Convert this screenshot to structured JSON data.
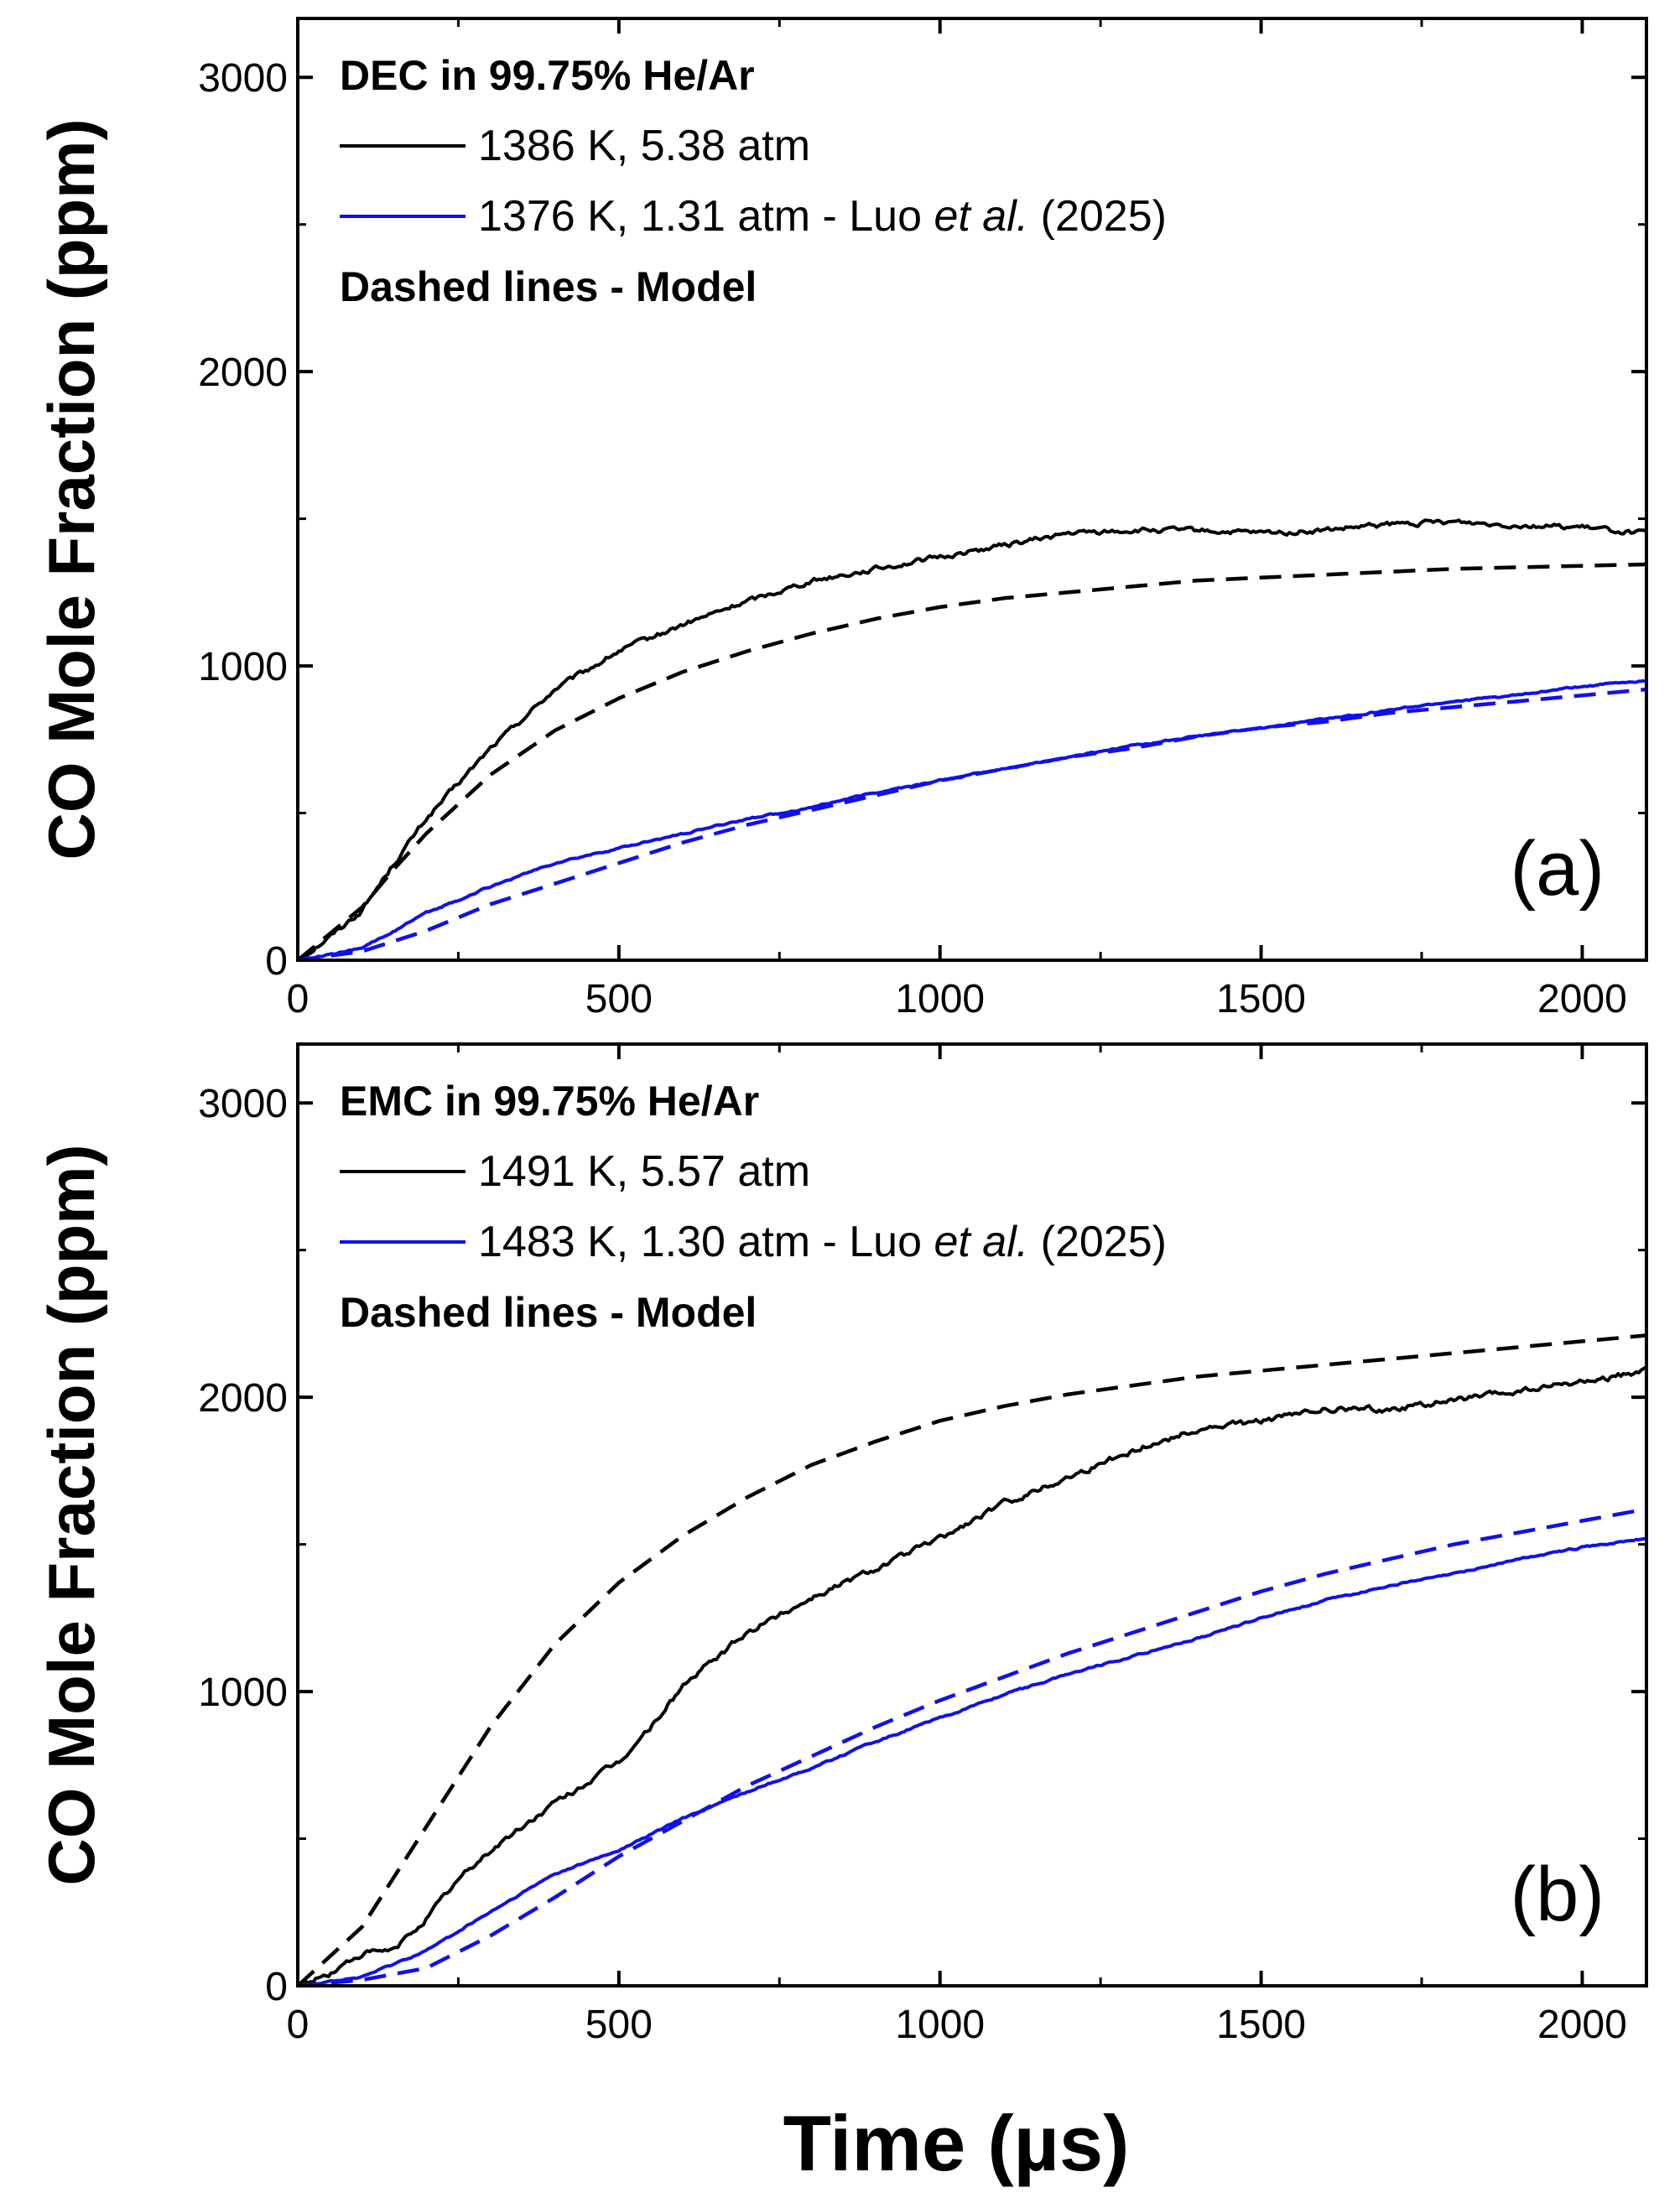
{
  "figure": {
    "shared_ylabel": "CO Mole Fraction (ppm)",
    "shared_xlabel": "Time (µs)"
  },
  "chart_data": [
    {
      "type": "line",
      "panel_label": "(a)",
      "legend_title": "DEC in 99.75% He/Ar",
      "legend_note": "Dashed lines - Model",
      "legend_placement": "top-left",
      "xlabel": "",
      "ylabel": "CO Mole Fraction (ppm)",
      "xlim": [
        0,
        2100
      ],
      "ylim": [
        0,
        3200
      ],
      "xticks": [
        0,
        500,
        1000,
        1500,
        2000
      ],
      "xtick_labels": [
        "0",
        "500",
        "1000",
        "1500",
        "2000"
      ],
      "yticks": [
        0,
        1000,
        2000,
        3000
      ],
      "ytick_labels": [
        "0",
        "1000",
        "2000",
        "3000"
      ],
      "series": [
        {
          "name": "1386 K, 5.38 atm",
          "label_parts": [
            "1386 K, 5.38 atm"
          ],
          "color": "#000000",
          "style": "solid",
          "noise": 14,
          "x": [
            0,
            50,
            100,
            150,
            200,
            250,
            300,
            400,
            500,
            600,
            700,
            800,
            900,
            1000,
            1100,
            1200,
            1300,
            1400,
            1500,
            1600,
            1700,
            1800,
            1900,
            2000,
            2100
          ],
          "y": [
            0,
            80,
            170,
            330,
            480,
            600,
            720,
            920,
            1050,
            1140,
            1220,
            1290,
            1330,
            1370,
            1410,
            1450,
            1460,
            1460,
            1450,
            1460,
            1480,
            1490,
            1480,
            1470,
            1450
          ]
        },
        {
          "name": "1376 K, 1.31 atm - Luo et al. (2025)",
          "label_parts": [
            "1376 K, 1.31 atm - Luo ",
            "et al.",
            " (2025)"
          ],
          "color": "#1010ee",
          "style": "solid",
          "noise": 5,
          "x": [
            0,
            100,
            200,
            300,
            400,
            500,
            600,
            700,
            800,
            900,
            1000,
            1100,
            1200,
            1300,
            1400,
            1500,
            1600,
            1700,
            1800,
            1900,
            2000,
            2100
          ],
          "y": [
            0,
            40,
            160,
            250,
            330,
            380,
            430,
            480,
            520,
            570,
            610,
            650,
            690,
            730,
            760,
            790,
            820,
            850,
            880,
            900,
            930,
            950
          ]
        },
        {
          "name": "1386 K, 5.38 atm - Model",
          "color": "#000000",
          "style": "dashed",
          "x": [
            0,
            100,
            150,
            200,
            300,
            400,
            500,
            600,
            700,
            800,
            900,
            1000,
            1100,
            1200,
            1300,
            1400,
            1500,
            1600,
            1700,
            1800,
            1900,
            2000,
            2100
          ],
          "y": [
            0,
            180,
            310,
            430,
            630,
            780,
            890,
            980,
            1050,
            1110,
            1160,
            1200,
            1230,
            1250,
            1270,
            1290,
            1300,
            1310,
            1320,
            1330,
            1335,
            1340,
            1345
          ]
        },
        {
          "name": "1376 K, 1.31 atm - Model",
          "color": "#1010ee",
          "style": "dashed",
          "x": [
            0,
            100,
            200,
            300,
            400,
            500,
            600,
            700,
            800,
            900,
            1000,
            1100,
            1200,
            1300,
            1400,
            1500,
            1600,
            1700,
            1800,
            1900,
            2000,
            2100
          ],
          "y": [
            0,
            30,
            100,
            190,
            260,
            330,
            400,
            460,
            510,
            560,
            610,
            650,
            690,
            720,
            760,
            790,
            810,
            840,
            860,
            880,
            900,
            920
          ]
        }
      ]
    },
    {
      "type": "line",
      "panel_label": "(b)",
      "legend_title": "EMC in 99.75% He/Ar",
      "legend_note": "Dashed lines - Model",
      "legend_placement": "top-left",
      "xlabel": "Time (µs)",
      "ylabel": "CO Mole Fraction (ppm)",
      "xlim": [
        0,
        2100
      ],
      "ylim": [
        0,
        3200
      ],
      "xticks": [
        0,
        500,
        1000,
        1500,
        2000
      ],
      "xtick_labels": [
        "0",
        "500",
        "1000",
        "1500",
        "2000"
      ],
      "yticks": [
        0,
        1000,
        2000,
        3000
      ],
      "ytick_labels": [
        "0",
        "1000",
        "2000",
        "3000"
      ],
      "series": [
        {
          "name": "1491 K, 5.57 atm",
          "label_parts": [
            "1491 K, 5.57 atm"
          ],
          "color": "#000000",
          "style": "solid",
          "noise": 16,
          "x": [
            0,
            50,
            100,
            150,
            200,
            250,
            300,
            400,
            500,
            550,
            600,
            700,
            800,
            900,
            1000,
            1100,
            1200,
            1300,
            1400,
            1500,
            1600,
            1700,
            1800,
            1900,
            2000,
            2100
          ],
          "y": [
            0,
            40,
            110,
            120,
            230,
            360,
            460,
            620,
            760,
            880,
            1020,
            1200,
            1320,
            1420,
            1520,
            1640,
            1730,
            1820,
            1890,
            1920,
            1960,
            1960,
            1990,
            2020,
            2050,
            2090
          ]
        },
        {
          "name": "1483 K, 1.30 atm - Luo et al. (2025)",
          "label_parts": [
            "1483 K, 1.30 atm - Luo ",
            "et al.",
            " (2025)"
          ],
          "color": "#1010ee",
          "style": "solid",
          "noise": 5,
          "x": [
            0,
            100,
            200,
            300,
            400,
            500,
            600,
            700,
            800,
            900,
            1000,
            1100,
            1200,
            1300,
            1400,
            1500,
            1600,
            1700,
            1800,
            1900,
            2000,
            2100
          ],
          "y": [
            0,
            30,
            120,
            250,
            380,
            460,
            570,
            660,
            740,
            830,
            910,
            990,
            1060,
            1120,
            1180,
            1250,
            1310,
            1360,
            1400,
            1450,
            1490,
            1520
          ]
        },
        {
          "name": "1491 K, 5.57 atm - Model",
          "color": "#000000",
          "style": "dashed",
          "x": [
            0,
            100,
            200,
            300,
            400,
            500,
            600,
            700,
            800,
            900,
            1000,
            1100,
            1200,
            1300,
            1400,
            1500,
            1600,
            1700,
            1800,
            1900,
            2000,
            2100
          ],
          "y": [
            0,
            200,
            540,
            880,
            1160,
            1370,
            1530,
            1660,
            1770,
            1850,
            1920,
            1970,
            2010,
            2040,
            2070,
            2090,
            2110,
            2130,
            2150,
            2170,
            2190,
            2210
          ]
        },
        {
          "name": "1483 K, 1.30 atm - Model",
          "color": "#1010ee",
          "style": "dashed",
          "x": [
            0,
            100,
            200,
            300,
            400,
            500,
            600,
            700,
            800,
            900,
            1000,
            1100,
            1200,
            1300,
            1400,
            1500,
            1600,
            1700,
            1800,
            1900,
            2000,
            2100
          ],
          "y": [
            0,
            20,
            60,
            170,
            300,
            440,
            560,
            680,
            780,
            880,
            970,
            1050,
            1130,
            1200,
            1270,
            1340,
            1400,
            1450,
            1500,
            1540,
            1580,
            1620
          ]
        }
      ]
    }
  ]
}
